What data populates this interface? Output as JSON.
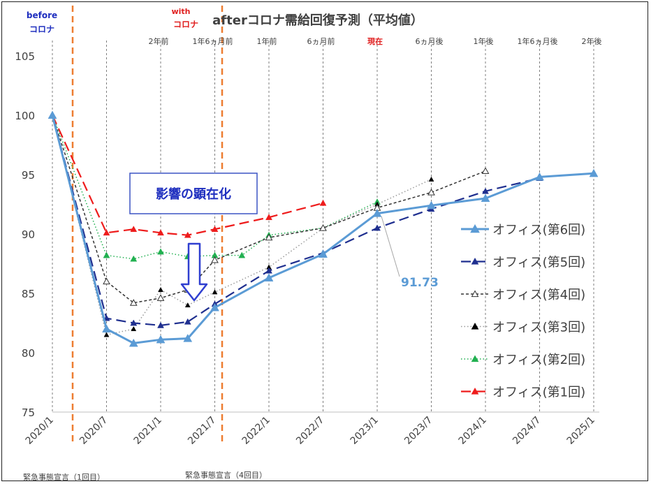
{
  "title": "afterコロナ需給回復予測（平均値）",
  "chart_data": {
    "type": "line",
    "title": "afterコロナ需給回復予測（平均値）",
    "xlabel": "",
    "ylabel": "",
    "ylim": [
      75,
      105
    ],
    "yticks": [
      "105",
      "100",
      "95",
      "90",
      "85",
      "80",
      "75"
    ],
    "grid": "vertical dashed",
    "legend_position": "right",
    "x_tick_labels": [
      "2020/1",
      "2020/7",
      "2021/1",
      "2021/7",
      "2022/1",
      "2022/7",
      "2023/1",
      "2023/7",
      "2024/1",
      "2024/7",
      "2025/1"
    ],
    "top_labels": [
      "2年前",
      "1年6ヵ月前",
      "1年前",
      "6ヵ月前",
      "現在",
      "6ヵ月後",
      "1年後",
      "1年6ヵ月後",
      "2年後"
    ],
    "top_label_current_color": "#e02020",
    "series": [
      {
        "name": "オフィス(第1回)",
        "color": "#ee1c1c",
        "style": "long-dash",
        "marker": "filled-triangle",
        "points": [
          [
            0,
            100
          ],
          [
            1,
            90.1
          ],
          [
            1.5,
            90.4
          ],
          [
            2,
            90.1
          ],
          [
            2.5,
            89.9
          ],
          [
            3,
            90.4
          ],
          [
            4,
            91.4
          ],
          [
            5,
            92.6
          ]
        ]
      },
      {
        "name": "オフィス(第2回)",
        "color": "#21b050",
        "style": "dotted",
        "marker": "filled-triangle",
        "points": [
          [
            0,
            100
          ],
          [
            1,
            88.2
          ],
          [
            1.5,
            87.9
          ],
          [
            2,
            88.5
          ],
          [
            2.5,
            88.1
          ],
          [
            3,
            88.2
          ],
          [
            3.5,
            88.2
          ],
          [
            4,
            89.9
          ],
          [
            5,
            90.5
          ],
          [
            6,
            92.7
          ]
        ]
      },
      {
        "name": "オフィス(第3回)",
        "color": "#999999",
        "marker_color": "#000000",
        "style": "dotted",
        "marker": "small-filled-triangle",
        "points": [
          [
            0,
            100
          ],
          [
            1,
            81.5
          ],
          [
            1.5,
            82.0
          ],
          [
            2,
            85.3
          ],
          [
            2.5,
            84.0
          ],
          [
            3,
            85.1
          ],
          [
            4,
            87.2
          ],
          [
            5,
            90.5
          ],
          [
            6,
            92.5
          ],
          [
            7,
            94.6
          ]
        ]
      },
      {
        "name": "オフィス(第4回)",
        "color": "#333333",
        "style": "short-dash",
        "marker": "open-triangle",
        "points": [
          [
            0,
            100
          ],
          [
            1,
            86.0
          ],
          [
            1.5,
            84.2
          ],
          [
            2,
            84.6
          ],
          [
            2.5,
            85.3
          ],
          [
            3,
            87.8
          ],
          [
            4,
            89.7
          ],
          [
            5,
            90.5
          ],
          [
            6,
            92.2
          ],
          [
            7,
            93.5
          ],
          [
            8,
            95.3
          ]
        ]
      },
      {
        "name": "オフィス(第5回)",
        "color": "#1f2f8f",
        "style": "long-dash",
        "marker": "filled-triangle",
        "points": [
          [
            0,
            100
          ],
          [
            1,
            82.9
          ],
          [
            1.5,
            82.5
          ],
          [
            2,
            82.3
          ],
          [
            2.5,
            82.6
          ],
          [
            3,
            84.1
          ],
          [
            4,
            86.9
          ],
          [
            5,
            88.4
          ],
          [
            6,
            90.5
          ],
          [
            7,
            92.1
          ],
          [
            8,
            93.6
          ],
          [
            9,
            94.7
          ]
        ]
      },
      {
        "name": "オフィス(第6回)",
        "color": "#5b9bd5",
        "style": "solid",
        "marker": "filled-triangle",
        "points": [
          [
            0,
            100
          ],
          [
            1,
            82.0
          ],
          [
            1.5,
            80.8
          ],
          [
            2,
            81.1
          ],
          [
            2.5,
            81.2
          ],
          [
            3,
            83.8
          ],
          [
            4,
            86.3
          ],
          [
            5,
            88.3
          ],
          [
            6,
            91.73
          ],
          [
            7,
            92.4
          ],
          [
            8,
            93.0
          ],
          [
            9,
            94.8
          ],
          [
            10,
            95.1
          ]
        ]
      }
    ],
    "annotations": {
      "value_label": "91.73",
      "impact_box": "影響の顕在化",
      "before_small": "before",
      "before_big": "コロナ",
      "with_small": "with",
      "with_big": "コロナ",
      "emergency_1": "緊急事態宣言（1回目）",
      "emergency_4": "緊急事態宣言（4回目）"
    }
  }
}
